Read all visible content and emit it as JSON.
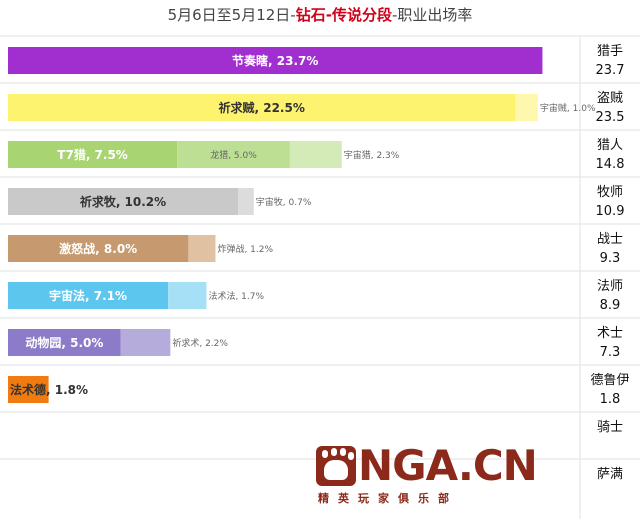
{
  "title": {
    "prefix": "5月6日至5月12日-",
    "highlight": "钻石-传说分段",
    "suffix": "-职业出场率"
  },
  "logo": {
    "text": "NGA.CN",
    "slogan": "精英玩家俱乐部"
  },
  "chart_data": {
    "type": "bar",
    "stacked": true,
    "orientation": "horizontal",
    "unit": "%",
    "classes": [
      {
        "name": "猎手",
        "total": "23.7",
        "segments": [
          {
            "label": "节奏瞎",
            "value": 23.7,
            "color": "#a12fcf"
          }
        ]
      },
      {
        "name": "盗贼",
        "total": "23.5",
        "segments": [
          {
            "label": "祈求贼",
            "value": 22.5,
            "color": "#fdf36e"
          },
          {
            "label": "宇宙贼",
            "value": 1.0,
            "color": "#fef7ae"
          }
        ]
      },
      {
        "name": "猎人",
        "total": "14.8",
        "segments": [
          {
            "label": "T7猎",
            "value": 7.5,
            "color": "#a8d572"
          },
          {
            "label": "龙猎",
            "value": 5.0,
            "color": "#bcdf94"
          },
          {
            "label": "宇宙猎",
            "value": 2.3,
            "color": "#d4eab7"
          }
        ]
      },
      {
        "name": "牧师",
        "total": "10.9",
        "segments": [
          {
            "label": "祈求牧",
            "value": 10.2,
            "color": "#c9c9c9"
          },
          {
            "label": "宇宙牧",
            "value": 0.7,
            "color": "#dcdcdc"
          }
        ]
      },
      {
        "name": "战士",
        "total": "9.3",
        "segments": [
          {
            "label": "激怒战",
            "value": 8.0,
            "color": "#c69a6e"
          },
          {
            "label": "炸弹战",
            "value": 1.2,
            "color": "#e0c2a3"
          }
        ]
      },
      {
        "name": "法师",
        "total": "8.9",
        "segments": [
          {
            "label": "宇宙法",
            "value": 7.1,
            "color": "#5dc6ee"
          },
          {
            "label": "法术法",
            "value": 1.7,
            "color": "#a6e0f6"
          }
        ]
      },
      {
        "name": "术士",
        "total": "7.3",
        "segments": [
          {
            "label": "动物园",
            "value": 5.0,
            "color": "#8c7bc8"
          },
          {
            "label": "祈求术",
            "value": 2.2,
            "color": "#b6acdc"
          }
        ]
      },
      {
        "name": "德鲁伊",
        "total": "1.8",
        "segments": [
          {
            "label": "法术德",
            "value": 1.8,
            "color": "#f07b10"
          }
        ]
      },
      {
        "name": "骑士",
        "total": "",
        "segments": []
      },
      {
        "name": "萨满",
        "total": "",
        "segments": []
      }
    ]
  }
}
